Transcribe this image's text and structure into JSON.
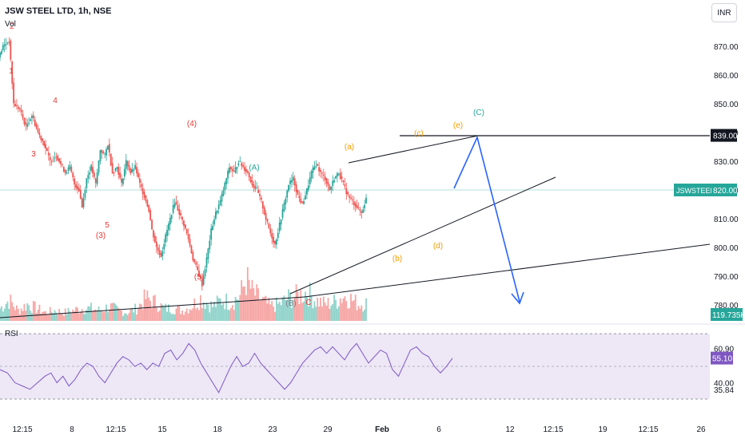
{
  "header": {
    "title": "JSW STEEL LTD, 1h, NSE",
    "vol_label": "Vol",
    "rsi_label": "RSI",
    "currency": "INR"
  },
  "colors": {
    "up": "#26a69a",
    "down": "#ef5350",
    "vol_up": "#8fd3ca",
    "vol_down": "#f6a6a4",
    "wave_red": "#e53935",
    "wave_green": "#26a69a",
    "wave_orange": "#f59c00",
    "arrow_blue": "#2962ff",
    "rsi_line": "#7e57c2",
    "rsi_bg": "#ede7f6"
  },
  "chart_data": [
    {
      "type": "candlestick",
      "title": "JSW STEEL LTD, 1h, NSE",
      "ylim": [
        776,
        880
      ],
      "y_ticks": [
        "870.00",
        "860.00",
        "850.00",
        "840.00",
        "830.00",
        "820.00",
        "810.00",
        "800.00",
        "790.00",
        "780.00"
      ],
      "x_ticks": [
        "12:15",
        "8",
        "12:15",
        "15",
        "18",
        "23",
        "29",
        "Feb",
        "6",
        "12",
        "12:15",
        "19",
        "12:15",
        "26"
      ],
      "price_label": {
        "text": "JSWSTEEL",
        "value": "820.00"
      },
      "level_label": "839.00",
      "volume_label": "119.735K",
      "price_path": [
        [
          0,
          866
        ],
        [
          3,
          870
        ],
        [
          7,
          872
        ],
        [
          10,
          850
        ],
        [
          14,
          848
        ],
        [
          18,
          842
        ],
        [
          22,
          846
        ],
        [
          26,
          840
        ],
        [
          30,
          836
        ],
        [
          34,
          830
        ],
        [
          38,
          832
        ],
        [
          41,
          829
        ],
        [
          44,
          826
        ],
        [
          47,
          828
        ],
        [
          50,
          822
        ],
        [
          53,
          820
        ],
        [
          55,
          814
        ],
        [
          58,
          824
        ],
        [
          61,
          828
        ],
        [
          64,
          822
        ],
        [
          67,
          834
        ],
        [
          70,
          832
        ],
        [
          72,
          836
        ],
        [
          75,
          826
        ],
        [
          78,
          828
        ],
        [
          81,
          822
        ],
        [
          84,
          830
        ],
        [
          87,
          826
        ],
        [
          90,
          828
        ],
        [
          93,
          822
        ],
        [
          96,
          818
        ],
        [
          99,
          813
        ],
        [
          101,
          806
        ],
        [
          104,
          800
        ],
        [
          107,
          797
        ],
        [
          110,
          804
        ],
        [
          113,
          810
        ],
        [
          116,
          816
        ],
        [
          119,
          812
        ],
        [
          122,
          808
        ],
        [
          125,
          803
        ],
        [
          128,
          796
        ],
        [
          131,
          792
        ],
        [
          134,
          787
        ],
        [
          137,
          796
        ],
        [
          140,
          806
        ],
        [
          143,
          812
        ],
        [
          146,
          816
        ],
        [
          149,
          822
        ],
        [
          152,
          828
        ],
        [
          155,
          826
        ],
        [
          158,
          830
        ],
        [
          161,
          828
        ],
        [
          164,
          826
        ],
        [
          167,
          822
        ],
        [
          170,
          820
        ],
        [
          173,
          816
        ],
        [
          176,
          810
        ],
        [
          179,
          805
        ],
        [
          182,
          801
        ],
        [
          185,
          808
        ],
        [
          188,
          815
        ],
        [
          191,
          822
        ],
        [
          194,
          824
        ],
        [
          197,
          818
        ],
        [
          200,
          815
        ],
        [
          203,
          820
        ],
        [
          206,
          826
        ],
        [
          209,
          829
        ],
        [
          212,
          826
        ],
        [
          215,
          824
        ],
        [
          218,
          820
        ],
        [
          221,
          824
        ],
        [
          224,
          826
        ],
        [
          227,
          822
        ],
        [
          230,
          818
        ],
        [
          233,
          816
        ],
        [
          236,
          814
        ],
        [
          239,
          812
        ],
        [
          242,
          817
        ]
      ],
      "volume_path": [
        [
          0,
          0.3
        ],
        [
          6,
          0.5
        ],
        [
          12,
          0.25
        ],
        [
          18,
          0.4
        ],
        [
          24,
          0.3
        ],
        [
          30,
          0.2
        ],
        [
          36,
          0.25
        ],
        [
          42,
          0.2
        ],
        [
          48,
          0.25
        ],
        [
          54,
          0.3
        ],
        [
          60,
          0.3
        ],
        [
          66,
          0.25
        ],
        [
          72,
          0.35
        ],
        [
          78,
          0.25
        ],
        [
          84,
          0.2
        ],
        [
          90,
          0.3
        ],
        [
          96,
          0.55
        ],
        [
          102,
          0.45
        ],
        [
          108,
          0.3
        ],
        [
          114,
          0.3
        ],
        [
          120,
          0.25
        ],
        [
          126,
          0.35
        ],
        [
          132,
          0.55
        ],
        [
          136,
          0.45
        ],
        [
          140,
          0.35
        ],
        [
          146,
          0.5
        ],
        [
          152,
          0.45
        ],
        [
          158,
          0.6
        ],
        [
          162,
          1.0
        ],
        [
          166,
          0.7
        ],
        [
          172,
          0.5
        ],
        [
          178,
          0.35
        ],
        [
          184,
          0.4
        ],
        [
          190,
          0.55
        ],
        [
          196,
          0.6
        ],
        [
          202,
          0.7
        ],
        [
          208,
          0.5
        ],
        [
          214,
          0.4
        ],
        [
          220,
          0.45
        ],
        [
          226,
          0.6
        ],
        [
          230,
          0.55
        ],
        [
          236,
          0.4
        ],
        [
          242,
          0.45
        ]
      ],
      "wave_labels": [
        {
          "text": "1",
          "x": 0,
          "y": 867,
          "color": "red"
        },
        {
          "text": "2",
          "x": 7,
          "y": 875,
          "color": "red"
        },
        {
          "text": "3",
          "x": 23,
          "y": 835,
          "color": "red"
        },
        {
          "text": "4",
          "x": 35,
          "y": 849,
          "color": "red"
        },
        {
          "text": "5",
          "x": 72,
          "y": 810,
          "color": "red"
        },
        {
          "text": "(3)",
          "x": 67,
          "y": 806,
          "color": "red"
        },
        {
          "text": "(4)",
          "x": 128,
          "y": 842,
          "color": "red"
        },
        {
          "text": "(5)",
          "x": 133,
          "y": 789,
          "color": "red"
        },
        {
          "text": "(A)",
          "x": 170,
          "y": 827,
          "color": "green"
        },
        {
          "text": "(B)",
          "x": 195,
          "y": 780,
          "color": "gray"
        },
        {
          "text": "C",
          "x": 207,
          "y": 780,
          "color": "red"
        },
        {
          "text": "(a)",
          "x": 234,
          "y": 836,
          "color": "orange"
        },
        {
          "text": "(b)",
          "x": 266,
          "y": 803,
          "color": "orange"
        },
        {
          "text": "(c)",
          "x": 280,
          "y": 840,
          "color": "orange"
        },
        {
          "text": "(d)",
          "x": 293,
          "y": 806,
          "color": "orange"
        },
        {
          "text": "(e)",
          "x": 307,
          "y": 842,
          "color": "orange"
        },
        {
          "text": "(C)",
          "x": 321,
          "y": 849,
          "color": "green"
        }
      ],
      "trend_lines": [
        {
          "from": [
            0,
            779
          ],
          "to": [
            340,
            780.5
          ],
          "axis": "left"
        },
        {
          "from": [
            195,
            785
          ],
          "to": [
            480,
            800.5
          ],
          "axis": "long"
        },
        {
          "from": [
            234,
            830
          ],
          "to": [
            312,
            839
          ],
          "axis": "left"
        },
        {
          "from": [
            265,
            801
          ],
          "to": [
            372,
            831
          ],
          "axis": "left"
        },
        {
          "from": [
            268,
            839
          ],
          "to": [
            476,
            839
          ],
          "axis": "left"
        }
      ],
      "projection": [
        [
          242,
          818
        ],
        [
          321,
          839
        ],
        [
          346,
          781
        ]
      ]
    },
    {
      "type": "line",
      "title": "RSI",
      "ylim": [
        30,
        72
      ],
      "y_ticks": [
        "60.90",
        "40.00",
        "35.84"
      ],
      "current_value": "55.10",
      "bands": [
        70,
        30
      ],
      "values": [
        [
          0,
          48
        ],
        [
          5,
          46
        ],
        [
          10,
          40
        ],
        [
          15,
          38
        ],
        [
          20,
          36
        ],
        [
          25,
          40
        ],
        [
          30,
          44
        ],
        [
          34,
          46
        ],
        [
          38,
          40
        ],
        [
          42,
          44
        ],
        [
          46,
          38
        ],
        [
          50,
          42
        ],
        [
          54,
          48
        ],
        [
          58,
          52
        ],
        [
          62,
          50
        ],
        [
          66,
          44
        ],
        [
          70,
          40
        ],
        [
          74,
          46
        ],
        [
          78,
          52
        ],
        [
          82,
          56
        ],
        [
          86,
          54
        ],
        [
          90,
          50
        ],
        [
          94,
          52
        ],
        [
          98,
          48
        ],
        [
          102,
          52
        ],
        [
          106,
          50
        ],
        [
          110,
          58
        ],
        [
          114,
          60
        ],
        [
          118,
          54
        ],
        [
          122,
          58
        ],
        [
          126,
          64
        ],
        [
          130,
          60
        ],
        [
          134,
          52
        ],
        [
          138,
          46
        ],
        [
          142,
          40
        ],
        [
          146,
          34
        ],
        [
          150,
          42
        ],
        [
          154,
          50
        ],
        [
          158,
          56
        ],
        [
          162,
          50
        ],
        [
          166,
          52
        ],
        [
          170,
          58
        ],
        [
          174,
          52
        ],
        [
          178,
          48
        ],
        [
          182,
          44
        ],
        [
          186,
          40
        ],
        [
          190,
          36
        ],
        [
          194,
          40
        ],
        [
          198,
          46
        ],
        [
          202,
          52
        ],
        [
          206,
          56
        ],
        [
          210,
          60
        ],
        [
          214,
          62
        ],
        [
          218,
          58
        ],
        [
          222,
          62
        ],
        [
          226,
          58
        ],
        [
          230,
          54
        ],
        [
          234,
          60
        ],
        [
          238,
          64
        ],
        [
          242,
          58
        ],
        [
          246,
          52
        ],
        [
          250,
          56
        ],
        [
          254,
          60
        ],
        [
          258,
          58
        ],
        [
          262,
          48
        ],
        [
          266,
          44
        ],
        [
          270,
          52
        ],
        [
          274,
          60
        ],
        [
          278,
          62
        ],
        [
          282,
          58
        ],
        [
          286,
          56
        ],
        [
          290,
          50
        ],
        [
          294,
          46
        ],
        [
          298,
          50
        ],
        [
          302,
          55
        ]
      ]
    }
  ]
}
